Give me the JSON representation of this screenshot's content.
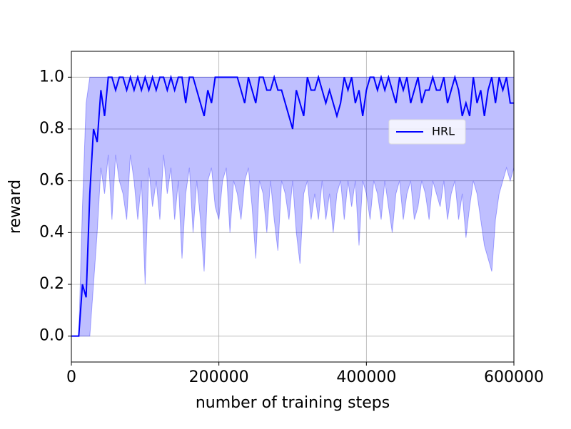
{
  "chart_data": {
    "type": "line",
    "xlabel": "number of training steps",
    "ylabel": "reward",
    "xlim": [
      0,
      600000
    ],
    "ylim": [
      -0.1,
      1.1
    ],
    "xticks": [
      0,
      200000,
      400000,
      600000
    ],
    "yticks": [
      {
        "value": 0,
        "label": "0.0"
      },
      0.2,
      0.4,
      0.6,
      0.8,
      {
        "value": 1,
        "label": "1.0"
      }
    ],
    "grid": true,
    "legend": "center right",
    "x": [
      0,
      5000,
      10000,
      15000,
      20000,
      25000,
      30000,
      35000,
      40000,
      45000,
      50000,
      55000,
      60000,
      65000,
      70000,
      75000,
      80000,
      85000,
      90000,
      95000,
      100000,
      105000,
      110000,
      115000,
      120000,
      125000,
      130000,
      135000,
      140000,
      145000,
      150000,
      155000,
      160000,
      165000,
      170000,
      175000,
      180000,
      185000,
      190000,
      195000,
      200000,
      205000,
      210000,
      215000,
      220000,
      225000,
      230000,
      235000,
      240000,
      245000,
      250000,
      255000,
      260000,
      265000,
      270000,
      275000,
      280000,
      285000,
      290000,
      295000,
      300000,
      305000,
      310000,
      315000,
      320000,
      325000,
      330000,
      335000,
      340000,
      345000,
      350000,
      355000,
      360000,
      365000,
      370000,
      375000,
      380000,
      385000,
      390000,
      395000,
      400000,
      405000,
      410000,
      415000,
      420000,
      425000,
      430000,
      435000,
      440000,
      445000,
      450000,
      455000,
      460000,
      465000,
      470000,
      475000,
      480000,
      485000,
      490000,
      495000,
      500000,
      505000,
      510000,
      515000,
      520000,
      525000,
      530000,
      535000,
      540000,
      545000,
      550000,
      555000,
      560000,
      565000,
      570000,
      575000,
      580000,
      585000,
      590000,
      595000,
      600000
    ],
    "series": [
      {
        "name": "HRL",
        "color": "#0000ff",
        "values": [
          0,
          0,
          0,
          0.2,
          0.15,
          0.55,
          0.8,
          0.75,
          0.95,
          0.85,
          1,
          1,
          0.95,
          1,
          1,
          0.95,
          1,
          0.95,
          1,
          0.95,
          1,
          0.95,
          1,
          0.95,
          1,
          1,
          0.95,
          1,
          0.95,
          1,
          1,
          0.9,
          1,
          1,
          0.95,
          0.9,
          0.85,
          0.95,
          0.9,
          1,
          1,
          1,
          1,
          1,
          1,
          1,
          0.95,
          0.9,
          1,
          0.95,
          0.9,
          1,
          1,
          0.95,
          0.95,
          1,
          0.95,
          0.95,
          0.9,
          0.85,
          0.8,
          0.95,
          0.9,
          0.85,
          1,
          0.95,
          0.95,
          1,
          0.95,
          0.9,
          0.95,
          0.9,
          0.85,
          0.9,
          1,
          0.95,
          1,
          0.9,
          0.95,
          0.85,
          0.95,
          1,
          1,
          0.95,
          1,
          0.95,
          1,
          0.95,
          0.9,
          1,
          0.95,
          1,
          0.9,
          0.95,
          1,
          0.9,
          0.95,
          0.95,
          1,
          0.95,
          0.95,
          1,
          0.9,
          0.95,
          1,
          0.95,
          0.85,
          0.9,
          0.85,
          1,
          0.9,
          0.95,
          0.85,
          0.95,
          1,
          0.9,
          1,
          0.95,
          1,
          0.9,
          0.9
        ],
        "band_color": "#0000ff",
        "lower": [
          0,
          0,
          0,
          0,
          0,
          0,
          0.2,
          0.4,
          0.65,
          0.55,
          0.7,
          0.45,
          0.7,
          0.6,
          0.55,
          0.45,
          0.7,
          0.6,
          0.45,
          0.6,
          0.2,
          0.65,
          0.5,
          0.6,
          0.45,
          0.7,
          0.55,
          0.65,
          0.45,
          0.6,
          0.3,
          0.55,
          0.65,
          0.4,
          0.6,
          0.45,
          0.25,
          0.6,
          0.65,
          0.5,
          0.45,
          0.6,
          0.65,
          0.4,
          0.6,
          0.55,
          0.45,
          0.6,
          0.65,
          0.5,
          0.3,
          0.6,
          0.55,
          0.4,
          0.6,
          0.45,
          0.33,
          0.6,
          0.55,
          0.45,
          0.6,
          0.4,
          0.28,
          0.55,
          0.6,
          0.45,
          0.55,
          0.45,
          0.6,
          0.45,
          0.55,
          0.4,
          0.55,
          0.6,
          0.45,
          0.6,
          0.5,
          0.6,
          0.35,
          0.6,
          0.55,
          0.45,
          0.6,
          0.55,
          0.45,
          0.6,
          0.5,
          0.4,
          0.55,
          0.6,
          0.45,
          0.55,
          0.6,
          0.45,
          0.5,
          0.6,
          0.55,
          0.45,
          0.6,
          0.55,
          0.5,
          0.6,
          0.45,
          0.55,
          0.6,
          0.45,
          0.55,
          0.38,
          0.5,
          0.6,
          0.55,
          0.45,
          0.35,
          0.3,
          0.25,
          0.45,
          0.55,
          0.6,
          0.65,
          0.6,
          0.65
        ],
        "upper": [
          0,
          0,
          0,
          0.5,
          0.9,
          1,
          1,
          1,
          1,
          1,
          1,
          1,
          1,
          1,
          1,
          1,
          1,
          1,
          1,
          1,
          1,
          1,
          1,
          1,
          1,
          1,
          1,
          1,
          1,
          1,
          1,
          1,
          1,
          1,
          1,
          1,
          1,
          1,
          1,
          1,
          1,
          1,
          1,
          1,
          1,
          1,
          1,
          1,
          1,
          1,
          1,
          1,
          1,
          1,
          1,
          1,
          1,
          1,
          1,
          1,
          1,
          1,
          1,
          1,
          1,
          1,
          1,
          1,
          1,
          1,
          1,
          1,
          1,
          1,
          1,
          1,
          1,
          1,
          1,
          1,
          1,
          1,
          1,
          1,
          1,
          1,
          1,
          1,
          1,
          1,
          1,
          1,
          1,
          1,
          1,
          1,
          1,
          1,
          1,
          1,
          1,
          1,
          1,
          1,
          1,
          1,
          1,
          1,
          1,
          1,
          1,
          1,
          1,
          1,
          1,
          1,
          1,
          1,
          1,
          1,
          1
        ]
      }
    ]
  }
}
